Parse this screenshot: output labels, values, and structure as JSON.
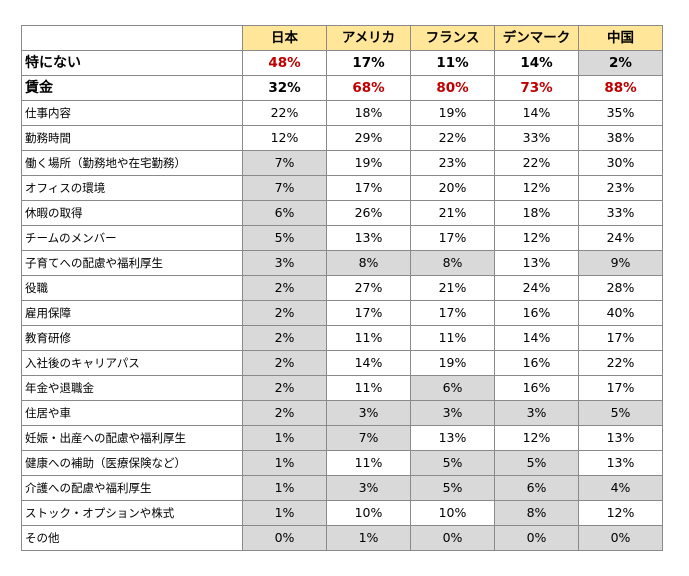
{
  "table": {
    "headers": [
      "日本",
      "アメリカ",
      "フランス",
      "デンマーク",
      "中国"
    ],
    "rows": [
      {
        "label": "特にない",
        "values": [
          "48%",
          "17%",
          "11%",
          "14%",
          "2%"
        ],
        "bold": true,
        "red": [
          0
        ],
        "shaded": [
          4
        ]
      },
      {
        "label": "賃金",
        "values": [
          "32%",
          "68%",
          "80%",
          "73%",
          "88%"
        ],
        "bold": true,
        "red": [
          1,
          2,
          3,
          4
        ],
        "shaded": []
      },
      {
        "label": "仕事内容",
        "values": [
          "22%",
          "18%",
          "19%",
          "14%",
          "35%"
        ],
        "shaded": []
      },
      {
        "label": "勤務時間",
        "values": [
          "12%",
          "29%",
          "22%",
          "33%",
          "38%"
        ],
        "shaded": []
      },
      {
        "label": "働く場所（勤務地や在宅勤務）",
        "values": [
          "7%",
          "19%",
          "23%",
          "22%",
          "30%"
        ],
        "shaded": [
          0
        ]
      },
      {
        "label": "オフィスの環境",
        "values": [
          "7%",
          "17%",
          "20%",
          "12%",
          "23%"
        ],
        "shaded": [
          0
        ]
      },
      {
        "label": "休暇の取得",
        "values": [
          "6%",
          "26%",
          "21%",
          "18%",
          "33%"
        ],
        "shaded": [
          0
        ]
      },
      {
        "label": "チームのメンバー",
        "values": [
          "5%",
          "13%",
          "17%",
          "12%",
          "24%"
        ],
        "shaded": [
          0
        ]
      },
      {
        "label": "子育てへの配慮や福利厚生",
        "values": [
          "3%",
          "8%",
          "8%",
          "13%",
          "9%"
        ],
        "shaded": [
          0,
          1,
          2,
          4
        ]
      },
      {
        "label": "役職",
        "values": [
          "2%",
          "27%",
          "21%",
          "24%",
          "28%"
        ],
        "shaded": [
          0
        ]
      },
      {
        "label": "雇用保障",
        "values": [
          "2%",
          "17%",
          "17%",
          "16%",
          "40%"
        ],
        "shaded": [
          0
        ]
      },
      {
        "label": "教育研修",
        "values": [
          "2%",
          "11%",
          "11%",
          "14%",
          "17%"
        ],
        "shaded": [
          0
        ]
      },
      {
        "label": "入社後のキャリアパス",
        "values": [
          "2%",
          "14%",
          "19%",
          "16%",
          "22%"
        ],
        "shaded": [
          0
        ]
      },
      {
        "label": "年金や退職金",
        "values": [
          "2%",
          "11%",
          "6%",
          "16%",
          "17%"
        ],
        "shaded": [
          0,
          2
        ]
      },
      {
        "label": "住居や車",
        "values": [
          "2%",
          "3%",
          "3%",
          "3%",
          "5%"
        ],
        "shaded": [
          0,
          1,
          2,
          3,
          4
        ]
      },
      {
        "label": "妊娠・出産への配慮や福利厚生",
        "values": [
          "1%",
          "7%",
          "13%",
          "12%",
          "13%"
        ],
        "shaded": [
          0,
          1
        ]
      },
      {
        "label": "健康への補助（医療保険など）",
        "values": [
          "1%",
          "11%",
          "5%",
          "5%",
          "13%"
        ],
        "shaded": [
          0,
          2,
          3
        ]
      },
      {
        "label": "介護への配慮や福利厚生",
        "values": [
          "1%",
          "3%",
          "5%",
          "6%",
          "4%"
        ],
        "shaded": [
          0,
          1,
          2,
          3,
          4
        ]
      },
      {
        "label": "ストック・オプションや株式",
        "values": [
          "1%",
          "10%",
          "10%",
          "8%",
          "12%"
        ],
        "shaded": [
          0,
          3
        ]
      },
      {
        "label": "その他",
        "values": [
          "0%",
          "1%",
          "0%",
          "0%",
          "0%"
        ],
        "shaded": [
          0,
          1,
          2,
          3,
          4
        ]
      }
    ]
  }
}
